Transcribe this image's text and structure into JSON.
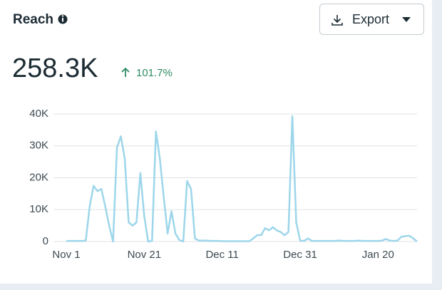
{
  "header": {
    "title": "Reach",
    "button": "Export"
  },
  "summary": {
    "value": "258.3K",
    "change": "101.7%"
  },
  "chart_data": {
    "type": "line",
    "categories": [
      "Nov 1",
      null,
      null,
      null,
      null,
      null,
      null,
      null,
      null,
      null,
      null,
      null,
      null,
      null,
      null,
      null,
      null,
      null,
      null,
      null,
      "Nov 21",
      null,
      null,
      null,
      null,
      null,
      null,
      null,
      null,
      null,
      null,
      null,
      null,
      null,
      null,
      null,
      null,
      null,
      null,
      null,
      "Dec 11",
      null,
      null,
      null,
      null,
      null,
      null,
      null,
      null,
      null,
      null,
      null,
      null,
      null,
      null,
      null,
      null,
      null,
      null,
      null,
      "Dec 31",
      null,
      null,
      null,
      null,
      null,
      null,
      null,
      null,
      null,
      null,
      null,
      null,
      null,
      null,
      null,
      null,
      null,
      null,
      null,
      "Jan 20",
      null,
      null,
      null,
      null,
      null,
      null,
      null,
      null,
      null,
      null
    ],
    "values": [
      200,
      200,
      200,
      200,
      200,
      300,
      11000,
      17500,
      15800,
      16500,
      11000,
      5000,
      0,
      29500,
      33000,
      26000,
      6000,
      5000,
      6000,
      21500,
      8000,
      0,
      200,
      34500,
      26000,
      14000,
      2500,
      9500,
      2500,
      500,
      0,
      19000,
      16500,
      1000,
      300,
      300,
      300,
      200,
      200,
      200,
      100,
      100,
      100,
      100,
      100,
      100,
      100,
      100,
      1000,
      2000,
      2000,
      4200,
      3500,
      4500,
      3500,
      3000,
      2000,
      3000,
      39300,
      6000,
      300,
      200,
      1000,
      200,
      200,
      200,
      200,
      200,
      200,
      200,
      300,
      200,
      200,
      200,
      200,
      300,
      200,
      200,
      200,
      200,
      200,
      300,
      800,
      300,
      200,
      300,
      1500,
      1700,
      1800,
      1000,
      0
    ],
    "color": "#9dd6ea",
    "ylim": [
      0,
      40000
    ],
    "yticks": [
      0,
      {
        "value": 10000,
        "label": "10K"
      },
      {
        "value": 20000,
        "label": "20K"
      },
      {
        "value": 30000,
        "label": "30K"
      },
      {
        "value": 40000,
        "label": "40K"
      }
    ],
    "grid": true
  }
}
